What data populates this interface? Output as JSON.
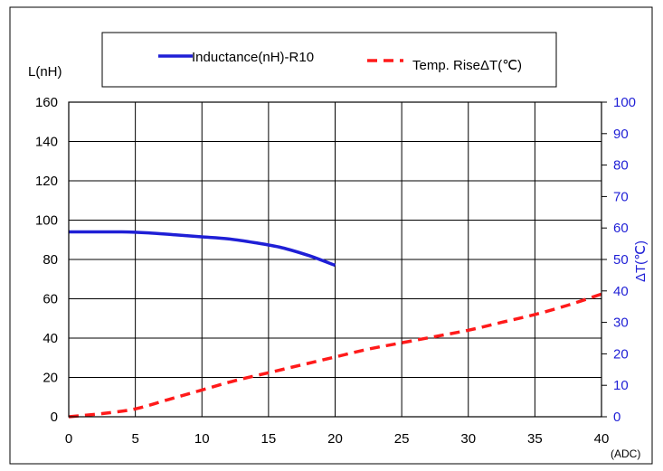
{
  "chart_data": {
    "type": "line",
    "x_unit": "(ADC)",
    "x_range": [
      0,
      40
    ],
    "x_ticks": [
      0,
      5,
      10,
      15,
      20,
      25,
      30,
      35,
      40
    ],
    "y_left_label": "L(nH)",
    "y_left_range": [
      0,
      160
    ],
    "y_left_ticks": [
      0,
      20,
      40,
      60,
      80,
      100,
      120,
      140,
      160
    ],
    "y_right_label": "ΔT(℃)",
    "y_right_range": [
      0,
      100
    ],
    "y_right_ticks": [
      0,
      10,
      20,
      30,
      40,
      50,
      60,
      70,
      80,
      90,
      100
    ],
    "grid": true,
    "legend_position": "top",
    "series": [
      {
        "name": "Inductance(nH)-R10",
        "axis": "left",
        "color": "#1f1fd6",
        "style": "solid",
        "x": [
          0,
          2,
          4,
          6,
          8,
          10,
          12,
          14,
          16,
          18,
          20
        ],
        "y": [
          94,
          94,
          94,
          93.5,
          92.5,
          91.5,
          90.5,
          88.5,
          86,
          82,
          77
        ]
      },
      {
        "name": "Temp. RiseΔT(℃)",
        "axis": "right",
        "color": "#ff1a1a",
        "style": "dashed",
        "x": [
          0,
          2.5,
          5,
          7.5,
          10,
          12.5,
          15,
          17.5,
          20,
          22.5,
          25,
          27.5,
          30,
          32.5,
          35,
          37.5,
          40
        ],
        "y": [
          0,
          1,
          2.5,
          5.5,
          8.5,
          11.5,
          14,
          16.5,
          19,
          21.5,
          23.5,
          25.5,
          27.5,
          30,
          32.5,
          35.5,
          39
        ]
      }
    ]
  }
}
